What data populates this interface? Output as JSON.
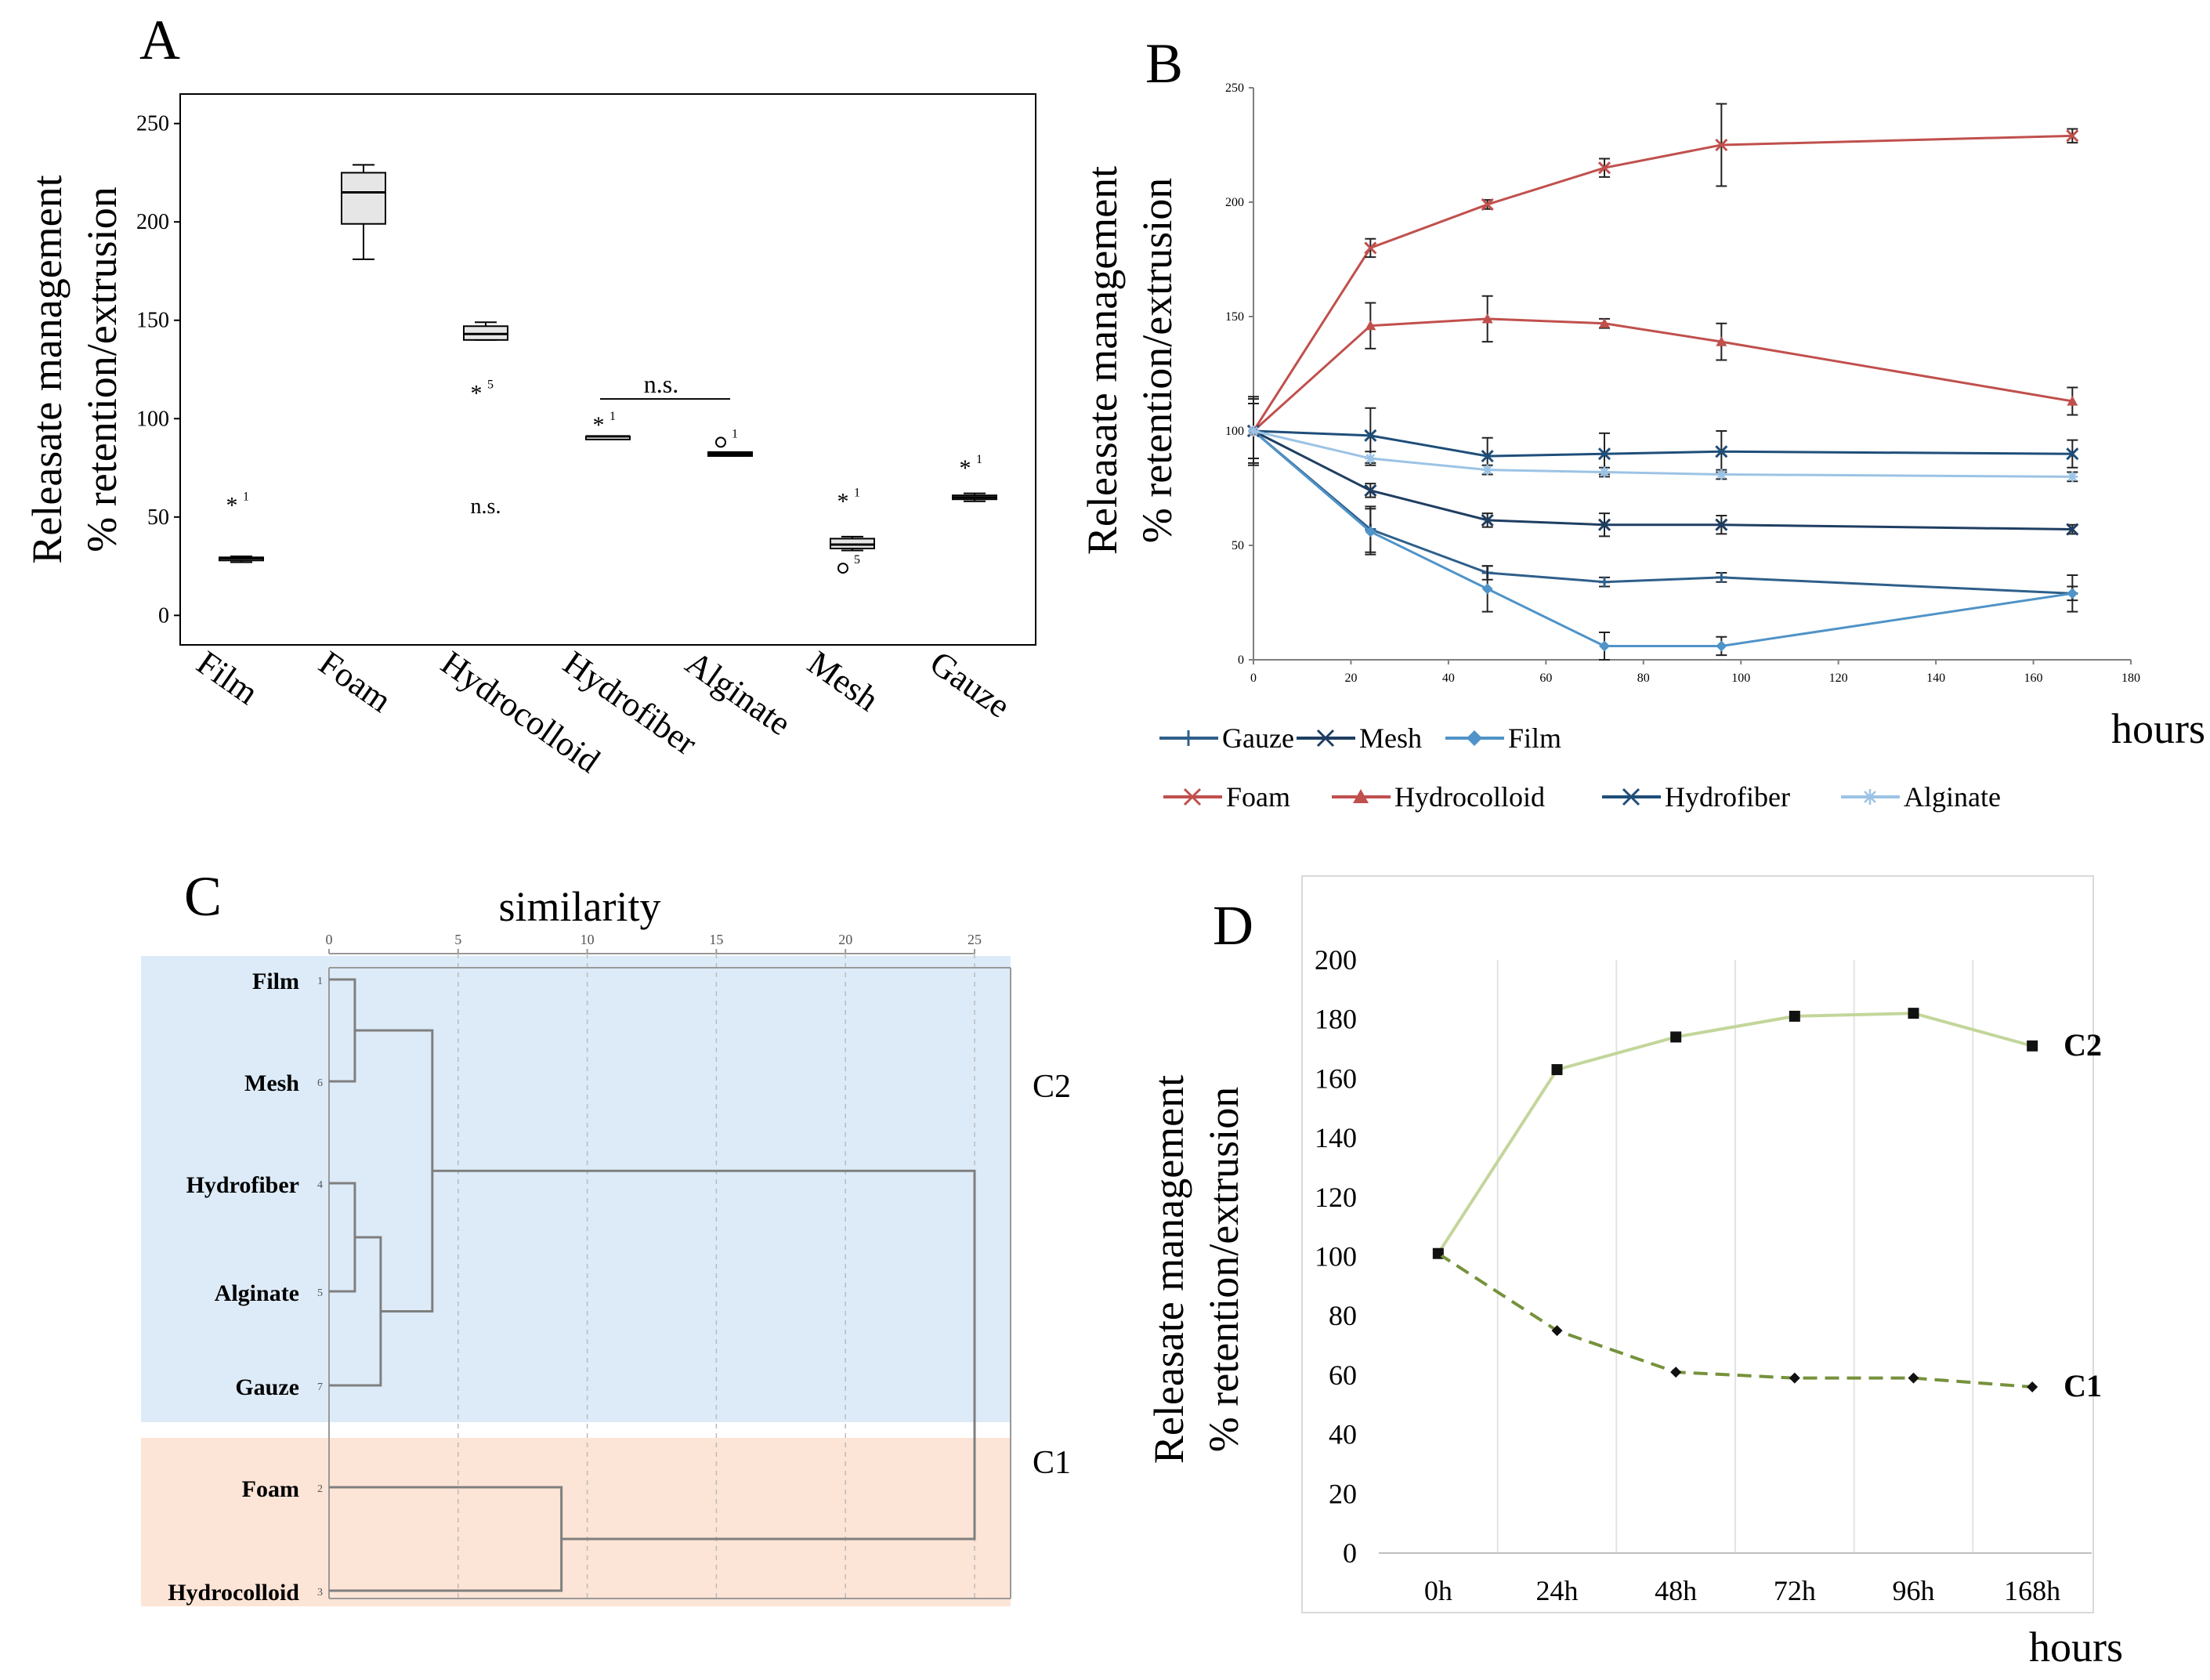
{
  "panels": {
    "A": {
      "letter": "A"
    },
    "B": {
      "letter": "B"
    },
    "C": {
      "letter": "C"
    },
    "D": {
      "letter": "D"
    }
  },
  "chart_data": [
    {
      "id": "A",
      "type": "box",
      "ylabel_line1": "Releasate management",
      "ylabel_line2": "% retention/extrusion",
      "ylim": [
        -15,
        265
      ],
      "yticks": [
        0,
        50,
        100,
        150,
        200,
        250
      ],
      "categories": [
        "Film",
        "Foam",
        "Hydrocolloid",
        "Hydrofiber",
        "Alginate",
        "Mesh",
        "Gauze"
      ],
      "boxes": [
        {
          "name": "Film",
          "min": 27,
          "q1": 28,
          "median": 29,
          "q3": 29.5,
          "max": 30,
          "outliers": [
            {
              "v": 56,
              "sym": "star",
              "label": "1"
            }
          ]
        },
        {
          "name": "Foam",
          "min": 181,
          "q1": 199,
          "median": 215,
          "q3": 225,
          "max": 229,
          "outliers": []
        },
        {
          "name": "Hydrocolloid",
          "min": 140,
          "q1": 140,
          "median": 143,
          "q3": 147,
          "max": 149,
          "outliers": [
            {
              "v": 113,
              "sym": "star",
              "label": "5"
            }
          ]
        },
        {
          "name": "Hydrofiber",
          "min": 90,
          "q1": 90,
          "median": 91,
          "q3": 91,
          "max": 91,
          "outliers": [
            {
              "v": 97,
              "sym": "star",
              "label": "1"
            }
          ]
        },
        {
          "name": "Alginate",
          "min": 81,
          "q1": 81,
          "median": 82,
          "q3": 83,
          "max": 83,
          "outliers": [
            {
              "v": 88,
              "sym": "circle",
              "label": "1"
            }
          ]
        },
        {
          "name": "Mesh",
          "min": 33,
          "q1": 34,
          "median": 36,
          "q3": 39,
          "max": 40,
          "outliers": [
            {
              "v": 58,
              "sym": "star",
              "label": "1"
            },
            {
              "v": 24,
              "sym": "circle",
              "label": "5"
            }
          ]
        },
        {
          "name": "Gauze",
          "min": 58,
          "q1": 59,
          "median": 60,
          "q3": 61,
          "max": 62,
          "outliers": [
            {
              "v": 75,
              "sym": "star",
              "label": "1"
            }
          ]
        }
      ],
      "annotations": [
        {
          "text": "n.s.",
          "between": [
            "Hydrofiber",
            "Alginate"
          ],
          "y": 110
        },
        {
          "text": "n.s.",
          "at": "Hydrocolloid",
          "y": 52
        }
      ]
    },
    {
      "id": "B",
      "type": "line",
      "ylabel_line1": "Releasate management",
      "ylabel_line2": "% retention/extrusion",
      "xlabel": "hours",
      "xlim": [
        0,
        180
      ],
      "ylim": [
        0,
        250
      ],
      "xticks": [
        0,
        20,
        40,
        60,
        80,
        100,
        120,
        140,
        160,
        180
      ],
      "yticks": [
        0,
        50,
        100,
        150,
        200,
        250
      ],
      "x": [
        0,
        24,
        48,
        72,
        96,
        168
      ],
      "series": [
        {
          "name": "Gauze",
          "color": "#2e5f8a",
          "marker": "plus",
          "values": [
            100,
            57,
            38,
            34,
            36,
            29
          ],
          "err": [
            15,
            10,
            3,
            2,
            2,
            3
          ]
        },
        {
          "name": "Mesh",
          "color": "#1f3e62",
          "marker": "x",
          "values": [
            100,
            74,
            61,
            59,
            59,
            57
          ],
          "err": [
            12,
            3,
            3,
            5,
            4,
            2
          ]
        },
        {
          "name": "Film",
          "color": "#4f93c8",
          "marker": "diamond",
          "values": [
            100,
            56,
            31,
            6,
            6,
            29
          ],
          "err": [
            14,
            10,
            10,
            6,
            4,
            8
          ]
        },
        {
          "name": "Foam",
          "color": "#c0504d",
          "marker": "x",
          "values": [
            100,
            180,
            199,
            215,
            225,
            229
          ],
          "err": [
            12,
            4,
            2,
            4,
            18,
            3
          ]
        },
        {
          "name": "Hydrocolloid",
          "color": "#c0504d",
          "marker": "triangle",
          "values": [
            100,
            146,
            149,
            147,
            139,
            113
          ],
          "err": [
            12,
            10,
            10,
            2,
            8,
            6
          ]
        },
        {
          "name": "Hydrofiber",
          "color": "#1f4e79",
          "marker": "x",
          "values": [
            100,
            98,
            89,
            90,
            91,
            90
          ],
          "err": [
            12,
            12,
            8,
            9,
            9,
            6
          ]
        },
        {
          "name": "Alginate",
          "color": "#9cc3e5",
          "marker": "star",
          "values": [
            100,
            88,
            83,
            82,
            81,
            80
          ],
          "err": [
            12,
            3,
            2,
            2,
            2,
            2
          ]
        }
      ],
      "legend_row1": [
        "Gauze",
        "Mesh",
        "Film"
      ],
      "legend_row2": [
        "Foam",
        "Hydrocolloid",
        "Hydrofiber",
        "Alginate"
      ]
    },
    {
      "id": "C",
      "type": "dendrogram",
      "title": "similarity",
      "xlim": [
        0,
        25
      ],
      "xticks": [
        0,
        5,
        10,
        15,
        20,
        25
      ],
      "leaves": [
        {
          "name": "Film",
          "index": "1"
        },
        {
          "name": "Mesh",
          "index": "6"
        },
        {
          "name": "Hydrofiber",
          "index": "4"
        },
        {
          "name": "Alginate",
          "index": "5"
        },
        {
          "name": "Gauze",
          "index": "7"
        },
        {
          "name": "Foam",
          "index": "2"
        },
        {
          "name": "Hydrocolloid",
          "index": "3"
        }
      ],
      "merges": [
        {
          "a": "L0",
          "b": "L1",
          "h": 1.0,
          "id": "M1"
        },
        {
          "a": "L2",
          "b": "L3",
          "h": 1.0,
          "id": "M2"
        },
        {
          "a": "M2",
          "b": "L4",
          "h": 2.0,
          "id": "M3"
        },
        {
          "a": "M1",
          "b": "M3",
          "h": 4.0,
          "id": "M4"
        },
        {
          "a": "L5",
          "b": "L6",
          "h": 9.0,
          "id": "M5"
        },
        {
          "a": "M4",
          "b": "M5",
          "h": 25.0,
          "id": "M6"
        }
      ],
      "cluster_labels": [
        "C2",
        "C1"
      ],
      "cluster_colors": [
        "#ddebf8",
        "#fce4d6"
      ]
    },
    {
      "id": "D",
      "type": "line",
      "ylabel_line1": "Releasate management",
      "ylabel_line2": "% retention/extrusion",
      "xlabel": "hours",
      "ylim": [
        0,
        200
      ],
      "yticks": [
        0,
        20,
        40,
        60,
        80,
        100,
        120,
        140,
        160,
        180,
        200
      ],
      "categories": [
        "0h",
        "24h",
        "48h",
        "72h",
        "96h",
        "168h"
      ],
      "series": [
        {
          "name": "C2",
          "color": "#c3d69b",
          "marker": "square",
          "dash": false,
          "values": [
            101,
            163,
            174,
            181,
            182,
            171
          ]
        },
        {
          "name": "C1",
          "color": "#76923c",
          "marker": "diamond",
          "dash": true,
          "values": [
            101,
            75,
            61,
            59,
            59,
            56
          ]
        }
      ]
    }
  ]
}
